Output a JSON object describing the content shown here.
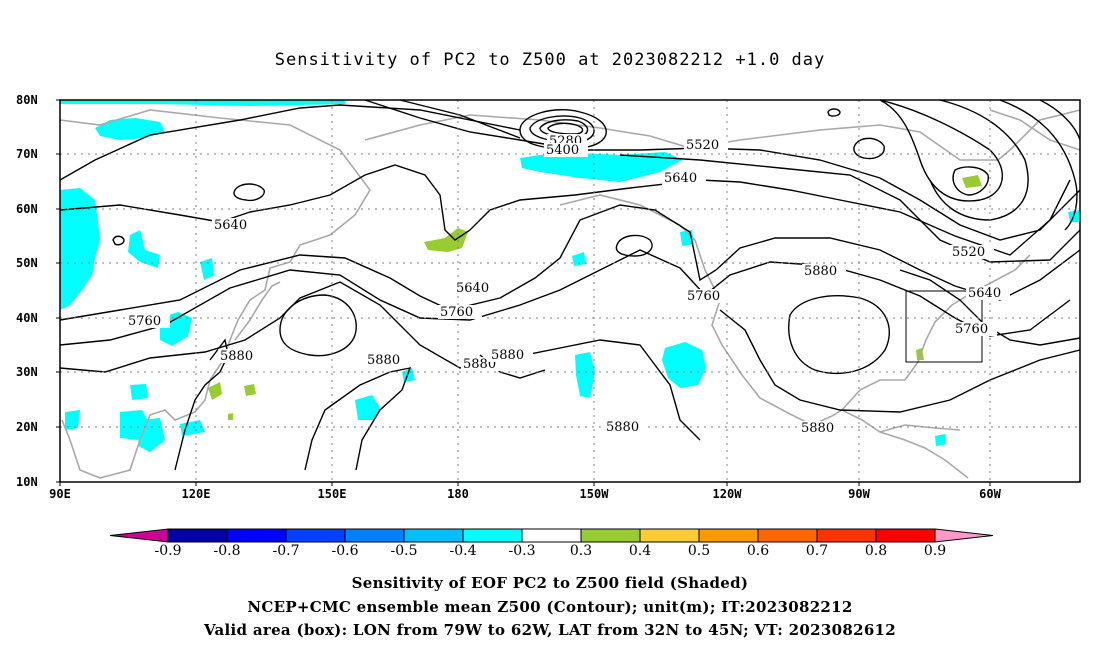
{
  "title": "Sensitivity of PC2 to Z500 at 2023082212 +1.0 day",
  "lat_labels": [
    "80N",
    "70N",
    "60N",
    "50N",
    "40N",
    "30N",
    "20N",
    "10N"
  ],
  "lon_labels": [
    "90E",
    "120E",
    "150E",
    "180",
    "150W",
    "120W",
    "90W",
    "60W"
  ],
  "contour_labels": {
    "c5280": "5280",
    "c5400": "5400",
    "c5520a": "5520",
    "c5520b": "5520",
    "c5640a": "5640",
    "c5640b": "5640",
    "c5640c": "5640",
    "c5640d": "5640",
    "c5760a": "5760",
    "c5760b": "5760",
    "c5760c": "5760",
    "c5760d": "5760",
    "c5880a": "5880",
    "c5880b": "5880",
    "c5880c": "5880",
    "c5880d": "5880",
    "c5880e": "5880",
    "c5880f": "5880",
    "c5880g": "5880"
  },
  "colorbar": {
    "labels": [
      "-0.9",
      "-0.8",
      "-0.7",
      "-0.6",
      "-0.5",
      "-0.4",
      "-0.3",
      "0.3",
      "0.4",
      "0.5",
      "0.6",
      "0.7",
      "0.8",
      "0.9"
    ],
    "colors": [
      "#0000aa",
      "#0000ff",
      "#0040ff",
      "#0080ff",
      "#00bfff",
      "#00ffff",
      "#ffffff",
      "#99cc33",
      "#ffcc33",
      "#ff9900",
      "#ff6600",
      "#ff3300",
      "#ff0000"
    ],
    "low_end_color": "#cc0099",
    "high_end_color": "#ff99cc"
  },
  "captions": {
    "line1": "Sensitivity of EOF PC2 to Z500 field (Shaded)",
    "line2": "NCEP+CMC ensemble mean Z500 (Contour); unit(m); IT:2023082212",
    "line3": "Valid area (box): LON from 79W to 62W, LAT from 32N to 45N; VT: 2023082612"
  },
  "colors": {
    "land": "#a9a9a9",
    "contour": "#000000",
    "negative_shade": "#00ffff",
    "positive_shade": "#99cc33"
  }
}
